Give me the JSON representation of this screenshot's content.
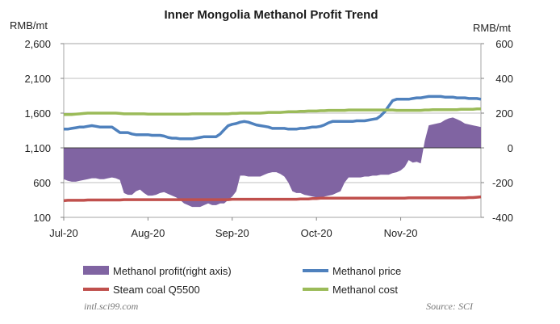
{
  "chart_data": {
    "type": "line",
    "title": "Inner Mongolia Methanol Profit Trend",
    "left_unit": "RMB/mt",
    "right_unit": "RMB/mt",
    "left_axis": {
      "min": 100,
      "max": 2600,
      "ticks": [
        "2,600",
        "2,100",
        "1,600",
        "1,100",
        "600",
        "100"
      ]
    },
    "right_axis": {
      "min": -400,
      "max": 600,
      "ticks": [
        "600",
        "400",
        "200",
        "0",
        "-200",
        "-400"
      ]
    },
    "x_labels": [
      "Jul-20",
      "Aug-20",
      "Sep-20",
      "Oct-20",
      "Nov-20"
    ],
    "x_label_index": [
      0,
      21,
      42,
      63,
      84
    ],
    "n_points": 105,
    "series": [
      {
        "name": "Methanol profit(right axis)",
        "type": "area",
        "axis": "right",
        "color": "#8064A2",
        "values": [
          -180,
          -190,
          -195,
          -195,
          -190,
          -185,
          -180,
          -175,
          -175,
          -180,
          -180,
          -175,
          -170,
          -175,
          -185,
          -260,
          -270,
          -270,
          -250,
          -240,
          -260,
          -275,
          -275,
          -270,
          -260,
          -255,
          -265,
          -275,
          -285,
          -300,
          -320,
          -330,
          -340,
          -340,
          -340,
          -330,
          -320,
          -330,
          -330,
          -320,
          -320,
          -300,
          -280,
          -250,
          -160,
          -160,
          -165,
          -165,
          -165,
          -165,
          -155,
          -145,
          -140,
          -140,
          -150,
          -165,
          -200,
          -250,
          -260,
          -260,
          -270,
          -275,
          -280,
          -285,
          -285,
          -280,
          -275,
          -270,
          -260,
          -250,
          -200,
          -170,
          -170,
          -170,
          -170,
          -165,
          -165,
          -160,
          -160,
          -155,
          -155,
          -155,
          -145,
          -140,
          -130,
          -110,
          -70,
          -85,
          -80,
          -90,
          40,
          130,
          135,
          140,
          145,
          160,
          170,
          175,
          165,
          155,
          140,
          135,
          130,
          125,
          120
        ]
      },
      {
        "name": "Methanol price",
        "type": "line",
        "axis": "left",
        "color": "#4F81BD",
        "values": [
          1370,
          1370,
          1380,
          1390,
          1400,
          1400,
          1410,
          1420,
          1410,
          1400,
          1400,
          1400,
          1400,
          1360,
          1320,
          1320,
          1320,
          1300,
          1290,
          1290,
          1290,
          1290,
          1280,
          1280,
          1280,
          1270,
          1250,
          1240,
          1240,
          1230,
          1230,
          1230,
          1230,
          1240,
          1250,
          1260,
          1260,
          1260,
          1260,
          1300,
          1360,
          1420,
          1440,
          1450,
          1470,
          1480,
          1470,
          1450,
          1430,
          1420,
          1410,
          1400,
          1380,
          1380,
          1380,
          1380,
          1370,
          1370,
          1370,
          1380,
          1380,
          1390,
          1400,
          1400,
          1410,
          1430,
          1460,
          1480,
          1480,
          1480,
          1480,
          1480,
          1480,
          1490,
          1490,
          1490,
          1500,
          1510,
          1520,
          1560,
          1620,
          1700,
          1780,
          1800,
          1800,
          1800,
          1800,
          1810,
          1820,
          1820,
          1830,
          1840,
          1840,
          1840,
          1840,
          1830,
          1830,
          1830,
          1820,
          1820,
          1820,
          1810,
          1810,
          1810,
          1800
        ]
      },
      {
        "name": "Steam coal Q5500",
        "type": "line",
        "axis": "left",
        "color": "#C0504D",
        "values": [
          340,
          345,
          345,
          345,
          345,
          345,
          350,
          350,
          350,
          350,
          350,
          350,
          350,
          350,
          350,
          355,
          355,
          355,
          355,
          355,
          355,
          355,
          355,
          355,
          355,
          355,
          355,
          355,
          355,
          355,
          355,
          355,
          355,
          355,
          355,
          355,
          355,
          355,
          355,
          355,
          355,
          355,
          360,
          360,
          360,
          360,
          360,
          360,
          360,
          360,
          360,
          360,
          360,
          360,
          360,
          360,
          360,
          360,
          360,
          365,
          365,
          365,
          370,
          370,
          375,
          375,
          375,
          375,
          375,
          375,
          375,
          375,
          375,
          375,
          375,
          375,
          375,
          375,
          375,
          375,
          375,
          375,
          375,
          375,
          375,
          375,
          380,
          380,
          380,
          380,
          380,
          380,
          380,
          380,
          380,
          380,
          380,
          380,
          380,
          380,
          380,
          385,
          385,
          390,
          395
        ]
      },
      {
        "name": "Methanol cost",
        "type": "line",
        "axis": "left",
        "color": "#9BBB59",
        "values": [
          1580,
          1580,
          1580,
          1585,
          1590,
          1595,
          1600,
          1600,
          1600,
          1600,
          1600,
          1600,
          1600,
          1600,
          1595,
          1590,
          1590,
          1590,
          1590,
          1590,
          1590,
          1585,
          1585,
          1585,
          1585,
          1585,
          1585,
          1585,
          1585,
          1585,
          1585,
          1585,
          1590,
          1590,
          1590,
          1590,
          1590,
          1590,
          1590,
          1590,
          1590,
          1590,
          1595,
          1595,
          1600,
          1600,
          1600,
          1600,
          1600,
          1600,
          1605,
          1610,
          1610,
          1610,
          1610,
          1615,
          1620,
          1620,
          1620,
          1625,
          1625,
          1630,
          1630,
          1630,
          1635,
          1635,
          1640,
          1640,
          1640,
          1640,
          1640,
          1645,
          1645,
          1645,
          1645,
          1645,
          1645,
          1645,
          1645,
          1645,
          1645,
          1645,
          1645,
          1640,
          1640,
          1640,
          1640,
          1640,
          1640,
          1640,
          1645,
          1645,
          1650,
          1650,
          1650,
          1650,
          1650,
          1650,
          1650,
          1655,
          1655,
          1655,
          1655,
          1660,
          1660
        ]
      }
    ],
    "legend": [
      {
        "label": "Methanol profit(right axis)",
        "marker": "area",
        "color": "#8064A2"
      },
      {
        "label": "Methanol price",
        "marker": "line",
        "color": "#4F81BD"
      },
      {
        "label": "Steam coal Q5500",
        "marker": "line",
        "color": "#C0504D"
      },
      {
        "label": "Methanol cost",
        "marker": "line",
        "color": "#9BBB59"
      }
    ],
    "source": "Source: SCI",
    "website": "intl.sci99.com"
  }
}
